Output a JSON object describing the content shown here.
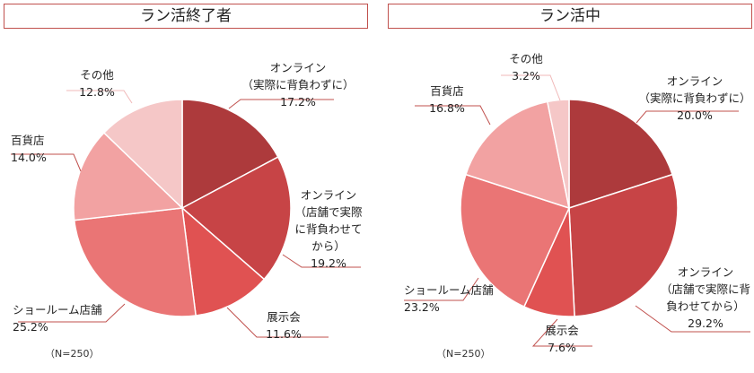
{
  "chart_data": [
    {
      "type": "pie",
      "title": "ラン活終了者",
      "note": "（N=250）",
      "slices": [
        {
          "label": [
            "オンライン",
            "（実際に背負わずに）"
          ],
          "pct_text": "17.2%",
          "value": 17.2,
          "color": "#ad3a3c"
        },
        {
          "label": [
            "オンライン",
            "（店舗で実際",
            "に背負わせて",
            "から）"
          ],
          "pct_text": "19.2%",
          "value": 19.2,
          "color": "#c74446"
        },
        {
          "label": [
            "展示会"
          ],
          "pct_text": "11.6%",
          "value": 11.6,
          "color": "#e05252"
        },
        {
          "label": [
            "ショールーム店舗"
          ],
          "pct_text": "25.2%",
          "value": 25.2,
          "color": "#ea7575"
        },
        {
          "label": [
            "百貨店"
          ],
          "pct_text": "14.0%",
          "value": 14.0,
          "color": "#f2a2a2"
        },
        {
          "label": [
            "その他"
          ],
          "pct_text": "12.8%",
          "value": 12.8,
          "color": "#f5c7c7"
        }
      ]
    },
    {
      "type": "pie",
      "title": "ラン活中",
      "note": "（N=250）",
      "slices": [
        {
          "label": [
            "オンライン",
            "（実際に背負わずに）"
          ],
          "pct_text": "20.0%",
          "value": 20.0,
          "color": "#ad3a3c"
        },
        {
          "label": [
            "オンライン",
            "（店舗で実際に背",
            "負わせてから）"
          ],
          "pct_text": "29.2%",
          "value": 29.2,
          "color": "#c74446"
        },
        {
          "label": [
            "展示会"
          ],
          "pct_text": "7.6%",
          "value": 7.6,
          "color": "#e05252"
        },
        {
          "label": [
            "ショールーム店舗"
          ],
          "pct_text": "23.2%",
          "value": 23.2,
          "color": "#ea7575"
        },
        {
          "label": [
            "百貨店"
          ],
          "pct_text": "16.8%",
          "value": 16.8,
          "color": "#f2a2a2"
        },
        {
          "label": [
            "その他"
          ],
          "pct_text": "3.2%",
          "value": 3.2,
          "color": "#f5c7c7"
        }
      ]
    }
  ]
}
